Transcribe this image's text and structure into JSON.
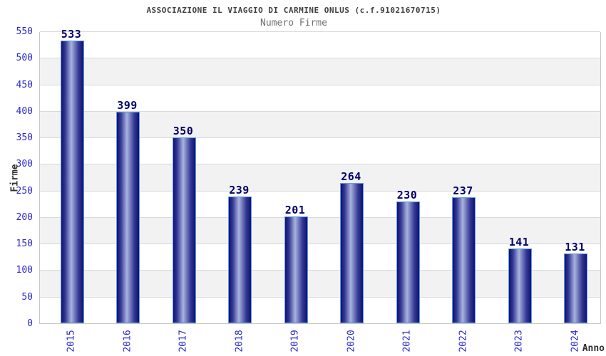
{
  "chart_data": {
    "type": "bar",
    "title": "ASSOCIAZIONE IL VIAGGIO DI CARMINE ONLUS (c.f.91021670715)",
    "subtitle": "Numero Firme",
    "xlabel": "Anno",
    "ylabel": "Firme",
    "categories": [
      "2015",
      "2016",
      "2017",
      "2018",
      "2019",
      "2020",
      "2021",
      "2022",
      "2023",
      "2024"
    ],
    "values": [
      533,
      399,
      350,
      239,
      201,
      264,
      230,
      237,
      141,
      131
    ],
    "ylim": [
      0,
      550
    ],
    "ytick_step": 50,
    "grid": true,
    "legend_position": "none",
    "band_pattern": [
      "white",
      "gray"
    ],
    "colors": {
      "title": "#3f3f3f",
      "subtitle": "#6f6f6f",
      "axis_title": "#333333",
      "tick_label": "#2929cc",
      "value_label": "#00006a",
      "grid_line": "#d9d9d9",
      "plot_border": "#c8c8c8",
      "band_gray": "#f2f2f2",
      "bar_dark": "#10106e",
      "bar_mid": "#353a96",
      "bar_light": "#a9b3de",
      "bar_border": "#5c9fe8",
      "background": "#ffffff"
    }
  }
}
